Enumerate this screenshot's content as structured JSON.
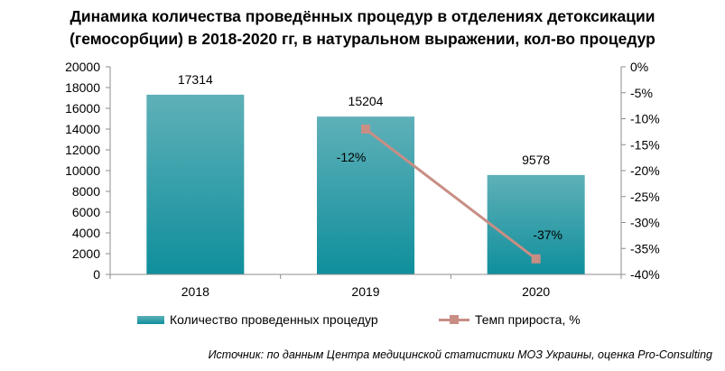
{
  "title_lines": [
    "Динамика количества проведённых процедур в отделениях детоксикации",
    "(гемосорбции) в 2018-2020 гг, в натуральном выражении, кол-во процедур"
  ],
  "legend": {
    "bars_label": "Количество  проведенных процедур",
    "line_label": "Темп прироста, %"
  },
  "source": "Источник: по данным Центра медицинской статистики МОЗ Украины, оценка Pro-Consulting",
  "colors": {
    "bar_top": "#5fb0b8",
    "bar_bottom": "#0f8f9c",
    "line": "#c88e84"
  },
  "chart_data": {
    "type": "bar",
    "categories": [
      "2018",
      "2019",
      "2020"
    ],
    "series": [
      {
        "name": "Количество  проведенных процедур",
        "type": "bar",
        "axis": "left",
        "values": [
          17314,
          15204,
          9578
        ],
        "labels": [
          "17314",
          "15204",
          "9578"
        ]
      },
      {
        "name": "Темп прироста, %",
        "type": "line",
        "axis": "right",
        "values": [
          null,
          -12,
          -37
        ],
        "labels": [
          "",
          "-12%",
          "-37%"
        ]
      }
    ],
    "y_left": {
      "min": 0,
      "max": 20000,
      "step": 2000,
      "ticks": [
        "0",
        "2000",
        "4000",
        "6000",
        "8000",
        "10000",
        "12000",
        "14000",
        "16000",
        "18000",
        "20000"
      ]
    },
    "y_right": {
      "min": -40,
      "max": 0,
      "step": 5,
      "ticks": [
        "0%",
        "-5%",
        "-10%",
        "-15%",
        "-20%",
        "-25%",
        "-30%",
        "-35%",
        "-40%"
      ]
    },
    "grid": false,
    "legend_position": "bottom"
  }
}
